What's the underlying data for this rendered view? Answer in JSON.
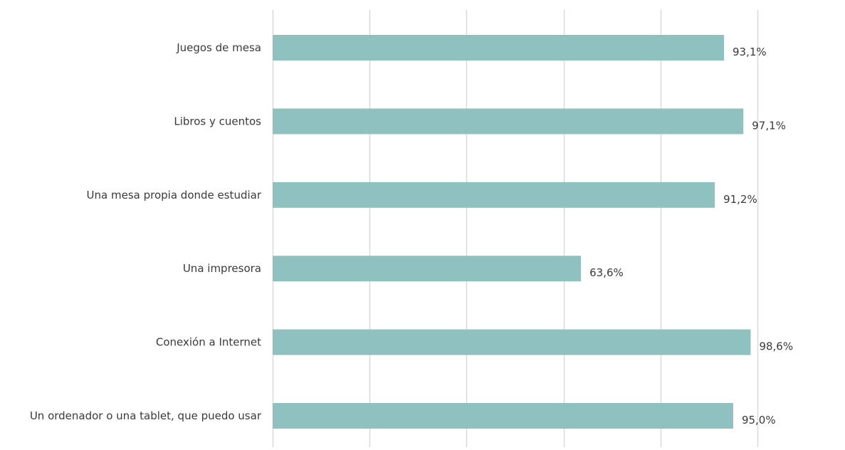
{
  "chart_data": {
    "type": "bar",
    "orientation": "horizontal",
    "categories": [
      "Juegos de mesa",
      "Libros y cuentos",
      "Una mesa propia donde estudiar",
      "Una impresora",
      "Conexión a Internet",
      "Un ordenador o una tablet, que puedo usar"
    ],
    "values": [
      93.1,
      97.1,
      91.2,
      63.6,
      98.6,
      95.0
    ],
    "value_labels": [
      "93,1%",
      "97,1%",
      "91,2%",
      "63,6%",
      "98,6%",
      "95,0%"
    ],
    "xlim": [
      0,
      100
    ],
    "grid_values": [
      0,
      20,
      40,
      60,
      80,
      100
    ],
    "grid": true,
    "title": "",
    "xlabel": "",
    "ylabel": "",
    "colors": {
      "bar": "#8fc1c0",
      "grid": "#d9d9d9",
      "category_text": "#3a3a3a",
      "value_text": "#3a3a3a"
    }
  }
}
